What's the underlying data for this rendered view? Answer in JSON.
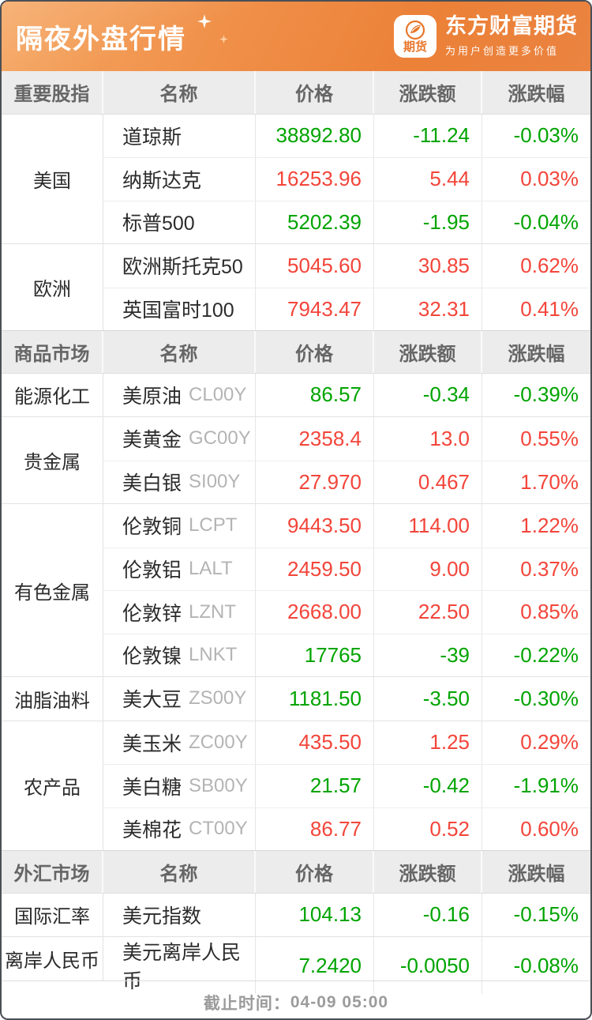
{
  "header": {
    "title": "隔夜外盘行情",
    "logo": {
      "badge_text": "期货",
      "brand_name": "东方财富期货",
      "slogan": "为用户创造更多价值"
    }
  },
  "footer": {
    "cutoff_label": "截止时间：",
    "cutoff_time": "04-09 05:00"
  },
  "colors": {
    "up_red": "#f3453a",
    "down_green": "#00a400",
    "banner_orange": "#ec8138",
    "section_header_bg": "#ececec"
  },
  "chart_data": {
    "type": "table",
    "title": "隔夜外盘行情",
    "column_headers": [
      "名称",
      "价格",
      "涨跌额",
      "涨跌幅"
    ],
    "sections": [
      {
        "title": "重要股指",
        "groups": [
          {
            "category": "美国",
            "rows": [
              {
                "name": "道琼斯",
                "code": "",
                "price": "38892.80",
                "change": "-11.24",
                "pct": "-0.03%",
                "dir": "down"
              },
              {
                "name": "纳斯达克",
                "code": "",
                "price": "16253.96",
                "change": "5.44",
                "pct": "0.03%",
                "dir": "up"
              },
              {
                "name": "标普500",
                "code": "",
                "price": "5202.39",
                "change": "-1.95",
                "pct": "-0.04%",
                "dir": "down"
              }
            ]
          },
          {
            "category": "欧洲",
            "rows": [
              {
                "name": "欧洲斯托克50",
                "code": "",
                "price": "5045.60",
                "change": "30.85",
                "pct": "0.62%",
                "dir": "up"
              },
              {
                "name": "英国富时100",
                "code": "",
                "price": "7943.47",
                "change": "32.31",
                "pct": "0.41%",
                "dir": "up"
              }
            ]
          }
        ]
      },
      {
        "title": "商品市场",
        "groups": [
          {
            "category": "能源化工",
            "rows": [
              {
                "name": "美原油",
                "code": "CL00Y",
                "price": "86.57",
                "change": "-0.34",
                "pct": "-0.39%",
                "dir": "down"
              }
            ]
          },
          {
            "category": "贵金属",
            "rows": [
              {
                "name": "美黄金",
                "code": "GC00Y",
                "price": "2358.4",
                "change": "13.0",
                "pct": "0.55%",
                "dir": "up"
              },
              {
                "name": "美白银",
                "code": "SI00Y",
                "price": "27.970",
                "change": "0.467",
                "pct": "1.70%",
                "dir": "up"
              }
            ]
          },
          {
            "category": "有色金属",
            "rows": [
              {
                "name": "伦敦铜",
                "code": "LCPT",
                "price": "9443.50",
                "change": "114.00",
                "pct": "1.22%",
                "dir": "up"
              },
              {
                "name": "伦敦铝",
                "code": "LALT",
                "price": "2459.50",
                "change": "9.00",
                "pct": "0.37%",
                "dir": "up"
              },
              {
                "name": "伦敦锌",
                "code": "LZNT",
                "price": "2668.00",
                "change": "22.50",
                "pct": "0.85%",
                "dir": "up"
              },
              {
                "name": "伦敦镍",
                "code": "LNKT",
                "price": "17765",
                "change": "-39",
                "pct": "-0.22%",
                "dir": "down"
              }
            ]
          },
          {
            "category": "油脂油料",
            "rows": [
              {
                "name": "美大豆",
                "code": "ZS00Y",
                "price": "1181.50",
                "change": "-3.50",
                "pct": "-0.30%",
                "dir": "down"
              }
            ]
          },
          {
            "category": "农产品",
            "rows": [
              {
                "name": "美玉米",
                "code": "ZC00Y",
                "price": "435.50",
                "change": "1.25",
                "pct": "0.29%",
                "dir": "up"
              },
              {
                "name": "美白糖",
                "code": "SB00Y",
                "price": "21.57",
                "change": "-0.42",
                "pct": "-1.91%",
                "dir": "down"
              },
              {
                "name": "美棉花",
                "code": "CT00Y",
                "price": "86.77",
                "change": "0.52",
                "pct": "0.60%",
                "dir": "up"
              }
            ]
          }
        ]
      },
      {
        "title": "外汇市场",
        "groups": [
          {
            "category": "国际汇率",
            "rows": [
              {
                "name": "美元指数",
                "code": "",
                "price": "104.13",
                "change": "-0.16",
                "pct": "-0.15%",
                "dir": "down"
              }
            ]
          },
          {
            "category": "离岸人民币",
            "rows": [
              {
                "name": "美元离岸人民币",
                "code": "",
                "price": "7.2420",
                "change": "-0.0050",
                "pct": "-0.08%",
                "dir": "down"
              }
            ]
          }
        ]
      }
    ]
  }
}
